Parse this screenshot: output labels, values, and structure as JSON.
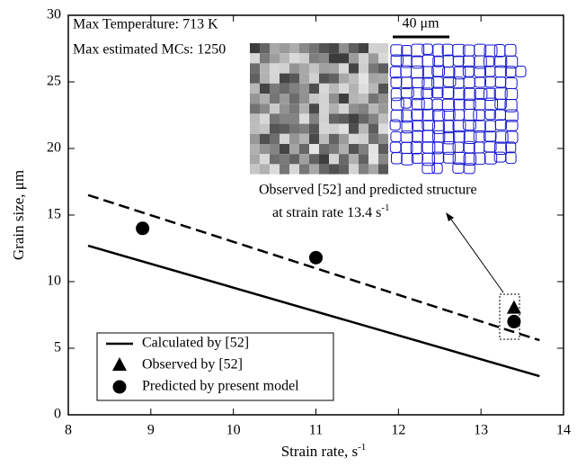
{
  "chart_data": {
    "type": "line",
    "xlabel": {
      "text": "Strain rate, s",
      "sup": "-1"
    },
    "ylabel": "Grain size, μm",
    "xlim": [
      8,
      14
    ],
    "xticks": [
      8,
      9,
      10,
      11,
      12,
      13,
      14
    ],
    "ylim": [
      0,
      30
    ],
    "yticks": [
      0,
      5,
      10,
      15,
      20,
      25,
      30
    ],
    "annotations": [
      "Max Temperature: 713 K",
      "Max estimated MCs: 1250",
      "40 μm",
      "Observed [52] and predicted structure",
      {
        "text": "at strain rate 13.4 s",
        "sup": "-1"
      }
    ],
    "legend": "lower left",
    "series": [
      {
        "name": "Calculated by [52]",
        "style": "solid",
        "color": "#000000",
        "x": [
          8.24,
          13.71
        ],
        "values": [
          12.7,
          2.9
        ]
      },
      {
        "style": "dashed",
        "color": "#000000",
        "x": [
          8.24,
          13.71
        ],
        "values": [
          16.5,
          5.6
        ]
      },
      {
        "name": "Observed by [52]",
        "style": "triangle",
        "color": "#000000",
        "x": [
          13.4
        ],
        "values": [
          8.0
        ]
      },
      {
        "name": "Predicted by present model",
        "style": "circle",
        "color": "#000000",
        "x": [
          8.9,
          11.0,
          13.4
        ],
        "values": [
          14.0,
          11.8,
          7.0
        ]
      }
    ]
  }
}
